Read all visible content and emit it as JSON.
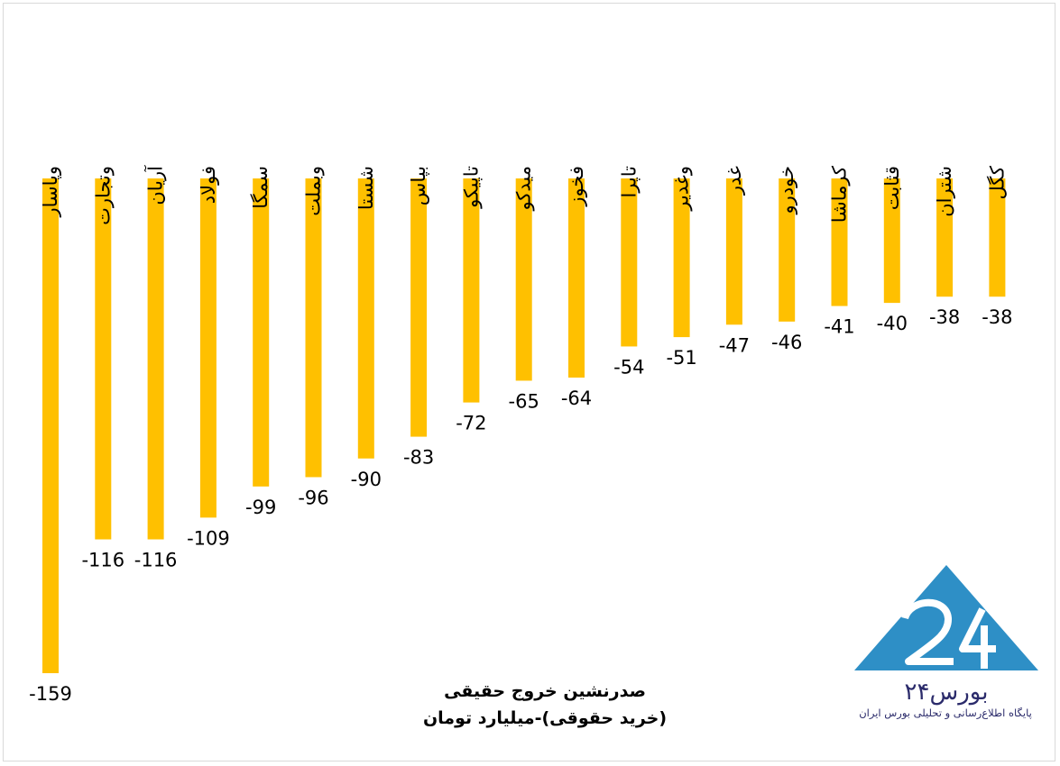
{
  "chart_data": {
    "type": "bar",
    "categories": [
      "وپاسار",
      "وتجارت",
      "آریان",
      "فولاد",
      "سمگا",
      "وبملت",
      "شستا",
      "بپاس",
      "تاپیکو",
      "میدکو",
      "فخوز",
      "تاپرا",
      "وغدیر",
      "غدر",
      "خودرو",
      "کرماشا",
      "قثابت",
      "شتران",
      "کگل"
    ],
    "values": [
      -159,
      -116,
      -116,
      -109,
      -99,
      -96,
      -90,
      -83,
      -72,
      -65,
      -64,
      -54,
      -51,
      -47,
      -46,
      -41,
      -40,
      -38,
      -38
    ],
    "title_lines": [
      "صدرنشین خروج حقیقی",
      "(خرید حقوقی)-میلیارد تومان"
    ],
    "ylim": [
      -159,
      0
    ],
    "grid": false,
    "legend": "none",
    "bar_color": "#FFC000"
  },
  "logo": {
    "brand_text": "بورس۲۴",
    "tagline": "پایگاه اطلاع‌رسانی و تحلیلی بورس ایران",
    "color": "#2e8fc6"
  }
}
